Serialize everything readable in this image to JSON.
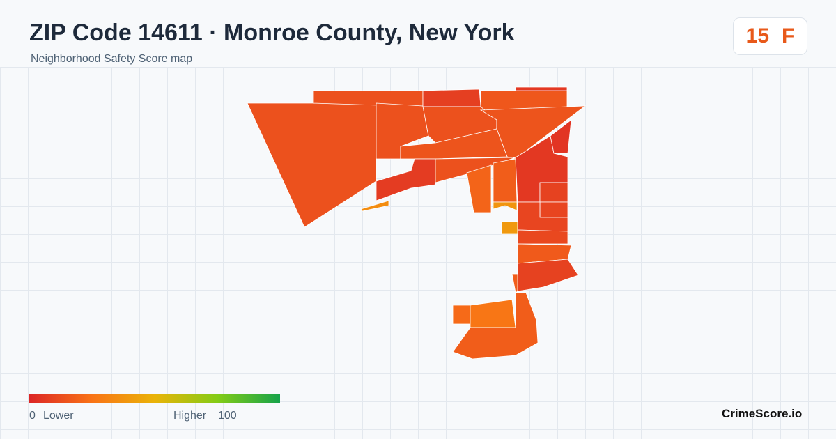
{
  "header": {
    "title": "ZIP Code 14611 · Monroe County, New York",
    "subtitle": "Neighborhood Safety Score map"
  },
  "score": {
    "value": 15,
    "grade": "F"
  },
  "map": {
    "region_scores": [
      14,
      14,
      14,
      8,
      16,
      6,
      14,
      15,
      15,
      7,
      14,
      20,
      18,
      35,
      38,
      40,
      6,
      5,
      9,
      10,
      10,
      11,
      17,
      9,
      18,
      22,
      26,
      18
    ]
  },
  "legend": {
    "min": 0,
    "min_label": "Lower",
    "max_label": "Higher",
    "max": 100
  },
  "brand": "CrimeScore.io"
}
